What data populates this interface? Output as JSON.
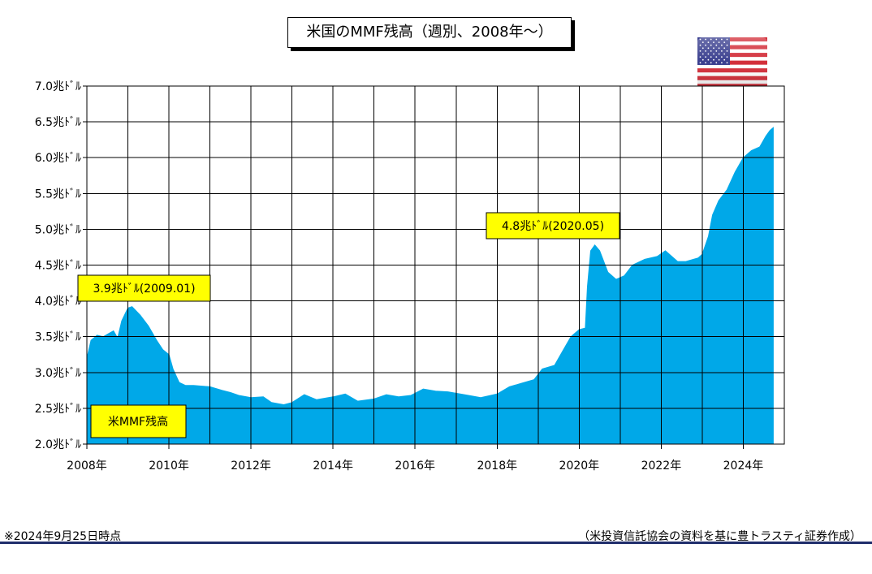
{
  "title": "米国のMMF残高（週別、2008年～）",
  "footnote": "※2024年9月25日時点",
  "source": "（米投資信託協会の資料を基に豊トラスティ証券作成）",
  "flag": {
    "name": "us-flag-icon",
    "red": "#d32f3a",
    "blue": "#3a3f8f"
  },
  "chart_data": {
    "type": "area",
    "title": "",
    "xlabel": "",
    "ylabel": "",
    "unit": "兆ドル",
    "xlim": [
      2008,
      2025
    ],
    "ylim": [
      2.0,
      7.0
    ],
    "y_ticks": [
      2.0,
      2.5,
      3.0,
      3.5,
      4.0,
      4.5,
      5.0,
      5.5,
      6.0,
      6.5,
      7.0
    ],
    "y_tick_labels": [
      "2.0兆ﾄﾞﾙ",
      "2.5兆ﾄﾞﾙ",
      "3.0兆ﾄﾞﾙ",
      "3.5兆ﾄﾞﾙ",
      "4.0兆ﾄﾞﾙ",
      "4.5兆ﾄﾞﾙ",
      "5.0兆ﾄﾞﾙ",
      "5.5兆ﾄﾞﾙ",
      "6.0兆ﾄﾞﾙ",
      "6.5兆ﾄﾞﾙ",
      "7.0兆ﾄﾞﾙ"
    ],
    "x_ticks": [
      2008,
      2010,
      2012,
      2014,
      2016,
      2018,
      2020,
      2022,
      2024
    ],
    "x_tick_labels": [
      "2008年",
      "2010年",
      "2012年",
      "2014年",
      "2016年",
      "2018年",
      "2020年",
      "2022年",
      "2024年"
    ],
    "grid": true,
    "fill_color": "#00a8e8",
    "series": [
      {
        "name": "米MMF残高",
        "x": [
          2008.0,
          2008.1,
          2008.25,
          2008.4,
          2008.55,
          2008.65,
          2008.75,
          2008.85,
          2009.0,
          2009.1,
          2009.3,
          2009.5,
          2009.7,
          2009.85,
          2010.0,
          2010.1,
          2010.25,
          2010.4,
          2010.6,
          2011.0,
          2011.3,
          2011.5,
          2011.7,
          2012.0,
          2012.3,
          2012.5,
          2012.8,
          2013.0,
          2013.3,
          2013.6,
          2014.0,
          2014.3,
          2014.6,
          2015.0,
          2015.3,
          2015.6,
          2015.9,
          2016.2,
          2016.5,
          2016.8,
          2017.0,
          2017.3,
          2017.6,
          2018.0,
          2018.3,
          2018.6,
          2018.9,
          2019.1,
          2019.4,
          2019.6,
          2019.8,
          2020.0,
          2020.15,
          2020.2,
          2020.28,
          2020.38,
          2020.5,
          2020.7,
          2020.9,
          2021.1,
          2021.3,
          2021.6,
          2021.9,
          2022.1,
          2022.4,
          2022.6,
          2022.9,
          2023.0,
          2023.15,
          2023.25,
          2023.4,
          2023.6,
          2023.8,
          2024.0,
          2024.2,
          2024.4,
          2024.55,
          2024.65,
          2024.73
        ],
        "values": [
          3.2,
          3.45,
          3.52,
          3.5,
          3.55,
          3.58,
          3.48,
          3.72,
          3.9,
          3.92,
          3.8,
          3.65,
          3.45,
          3.32,
          3.25,
          3.05,
          2.86,
          2.82,
          2.82,
          2.8,
          2.75,
          2.72,
          2.68,
          2.65,
          2.66,
          2.58,
          2.55,
          2.58,
          2.69,
          2.62,
          2.66,
          2.7,
          2.6,
          2.63,
          2.69,
          2.66,
          2.68,
          2.77,
          2.74,
          2.73,
          2.71,
          2.68,
          2.65,
          2.7,
          2.8,
          2.85,
          2.9,
          3.05,
          3.1,
          3.3,
          3.5,
          3.6,
          3.62,
          4.2,
          4.7,
          4.78,
          4.7,
          4.4,
          4.3,
          4.35,
          4.5,
          4.58,
          4.62,
          4.7,
          4.55,
          4.55,
          4.6,
          4.65,
          4.9,
          5.2,
          5.4,
          5.55,
          5.8,
          6.0,
          6.1,
          6.15,
          6.3,
          6.38,
          6.42
        ]
      }
    ],
    "annotations": [
      {
        "text": "3.9兆ﾄﾞﾙ(2009.01)",
        "x": 2009.0,
        "y": 3.9
      },
      {
        "text": "4.8兆ﾄﾞﾙ(2020.05)",
        "x": 2020.4,
        "y": 4.8
      }
    ],
    "legend": "bottom-left"
  }
}
